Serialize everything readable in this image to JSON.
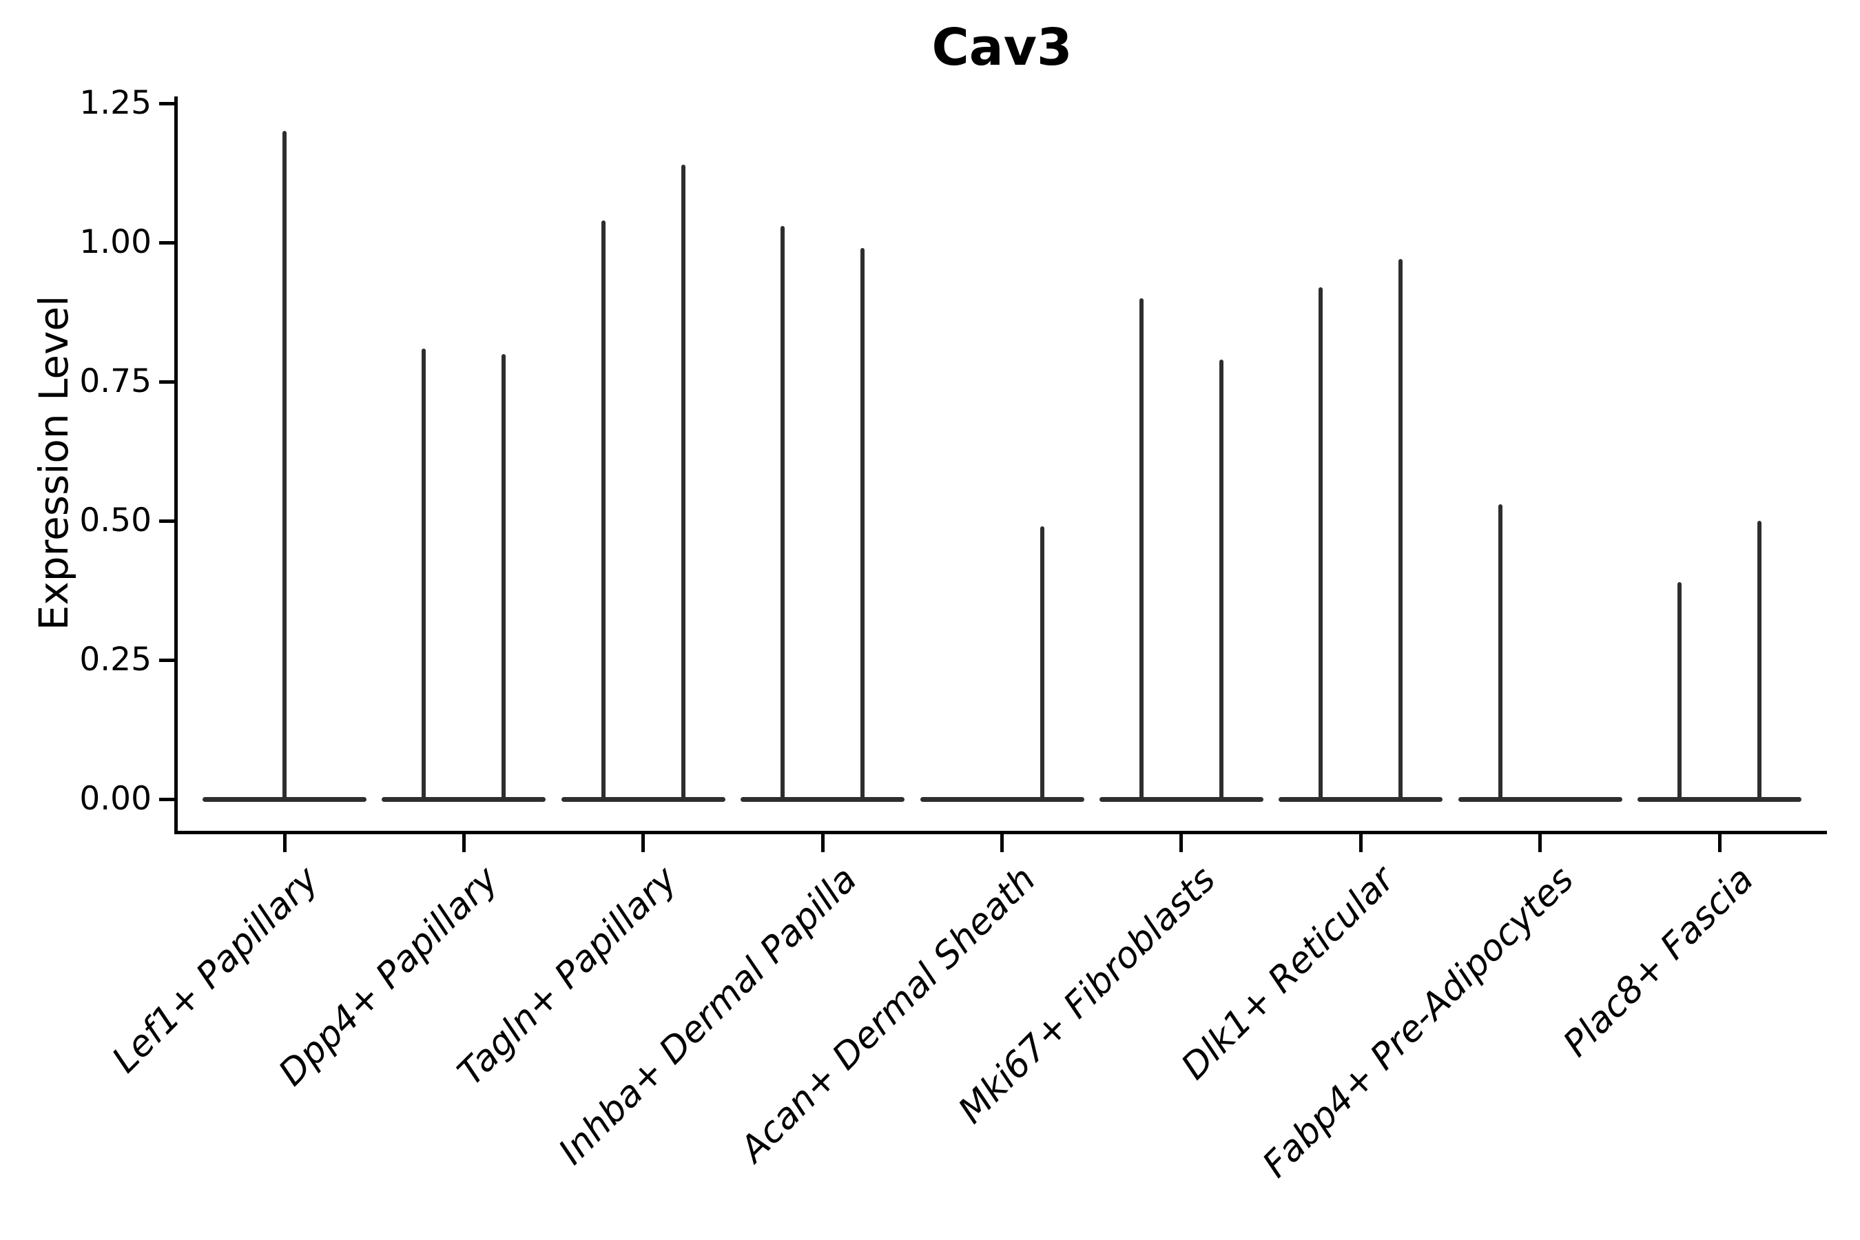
{
  "figure": {
    "background": "#ffffff",
    "ink_color": "#000000",
    "violin_color": "#2e2e2e"
  },
  "chart_data": {
    "type": "violin",
    "title": "Cav3",
    "ylabel": "Expression Level",
    "xlabel": "",
    "ylim": [
      0,
      1.25
    ],
    "yticks": [
      0,
      0.25,
      0.5,
      0.75,
      1,
      1.25
    ],
    "ytick_labels": [
      "0.00",
      "0.25",
      "0.50",
      "0.75",
      "1.00",
      "1.25"
    ],
    "grid": false,
    "legend": "none",
    "categories": [
      "Lef1+ Papillary",
      "Dpp4+ Papillary",
      "Tagln+ Papillary",
      "Inhba+ Dermal Papilla",
      "Acan+ Dermal Sheath",
      "Mki67+ Fibroblasts",
      "Dlk1+ Reticular",
      "Fabp4+ Pre-Adipocytes",
      "Plac8+ Fascia"
    ],
    "description": "Violin plot of Cav3 expression per fibroblast cluster; each violin is flat at 0 (most cells express 0) with thin vertical spikes reaching the maximum expression value. Categories with two spikes contain a pair of side-by-side violins.",
    "body_value": 0,
    "violins": [
      {
        "category": "Lef1+ Papillary",
        "spikes": [
          {
            "slot": "center",
            "max": 1.2
          }
        ]
      },
      {
        "category": "Dpp4+ Papillary",
        "spikes": [
          {
            "slot": "left",
            "max": 0.81
          },
          {
            "slot": "right",
            "max": 0.8
          }
        ]
      },
      {
        "category": "Tagln+ Papillary",
        "spikes": [
          {
            "slot": "left",
            "max": 1.04
          },
          {
            "slot": "right",
            "max": 1.14
          }
        ]
      },
      {
        "category": "Inhba+ Dermal Papilla",
        "spikes": [
          {
            "slot": "left",
            "max": 1.03
          },
          {
            "slot": "right",
            "max": 0.99
          }
        ]
      },
      {
        "category": "Acan+ Dermal Sheath",
        "spikes": [
          {
            "slot": "right",
            "max": 0.49
          }
        ]
      },
      {
        "category": "Mki67+ Fibroblasts",
        "spikes": [
          {
            "slot": "left",
            "max": 0.9
          },
          {
            "slot": "right",
            "max": 0.79
          }
        ]
      },
      {
        "category": "Dlk1+ Reticular",
        "spikes": [
          {
            "slot": "left",
            "max": 0.92
          },
          {
            "slot": "right",
            "max": 0.97
          }
        ]
      },
      {
        "category": "Fabp4+ Pre-Adipocytes",
        "spikes": [
          {
            "slot": "left",
            "max": 0.53
          }
        ]
      },
      {
        "category": "Plac8+ Fascia",
        "spikes": [
          {
            "slot": "left",
            "max": 0.39
          },
          {
            "slot": "right",
            "max": 0.5
          }
        ]
      }
    ]
  }
}
